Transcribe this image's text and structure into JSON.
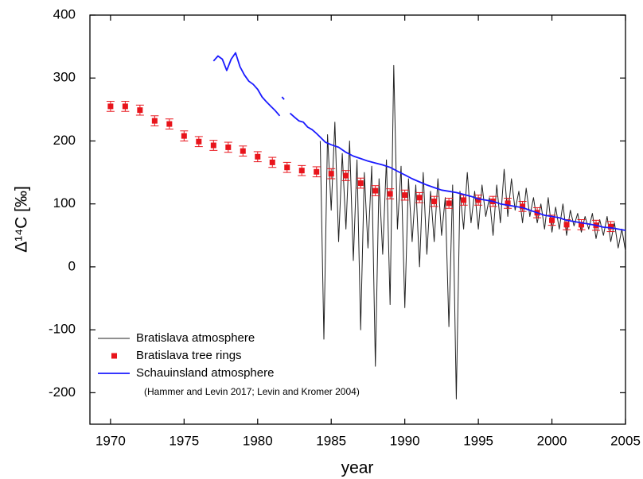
{
  "chart_data": {
    "type": "line",
    "xlabel": "year",
    "ylabel": "Δ¹⁴C [‰]",
    "xlim": [
      1968.6,
      2005
    ],
    "ylim": [
      -250,
      400
    ],
    "xticks": [
      1970,
      1975,
      1980,
      1985,
      1990,
      1995,
      2000,
      2005
    ],
    "yticks": [
      -200,
      -100,
      0,
      100,
      200,
      300,
      400
    ],
    "legend": "lower left",
    "annotation": "(Hammer and Levin 2017; Levin and Kromer 2004)",
    "series": [
      {
        "name": "Bratislava atmosphere",
        "color": "#222222",
        "mark": "line",
        "x": [
          1984.25,
          1984.5,
          1984.75,
          1985,
          1985.25,
          1985.5,
          1985.75,
          1986,
          1986.25,
          1986.5,
          1986.75,
          1987,
          1987.25,
          1987.5,
          1987.75,
          1988,
          1988.25,
          1988.5,
          1988.75,
          1989,
          1989.25,
          1989.5,
          1989.75,
          1990,
          1990.25,
          1990.5,
          1990.75,
          1991,
          1991.25,
          1991.5,
          1991.75,
          1992,
          1992.25,
          1992.5,
          1992.75,
          1993,
          1993.25,
          1993.5,
          1993.75,
          1994,
          1994.25,
          1994.5,
          1994.75,
          1995,
          1995.25,
          1995.5,
          1995.75,
          1996,
          1996.25,
          1996.5,
          1996.75,
          1997,
          1997.25,
          1997.5,
          1997.75,
          1998,
          1998.25,
          1998.5,
          1998.75,
          1999,
          1999.25,
          1999.5,
          1999.75,
          2000,
          2000.25,
          2000.5,
          2000.75,
          2001,
          2001.25,
          2001.5,
          2001.75,
          2002,
          2002.25,
          2002.5,
          2002.75,
          2003,
          2003.25,
          2003.5,
          2003.75,
          2004,
          2004.25,
          2004.5,
          2004.75,
          2005
        ],
        "values": [
          200,
          -115,
          210,
          90,
          230,
          40,
          180,
          60,
          200,
          10,
          170,
          -100,
          150,
          30,
          160,
          -158,
          140,
          20,
          170,
          -60,
          320,
          60,
          160,
          -65,
          140,
          40,
          130,
          0,
          150,
          20,
          120,
          40,
          140,
          50,
          110,
          -95,
          130,
          -210,
          120,
          60,
          150,
          70,
          120,
          60,
          130,
          80,
          110,
          50,
          130,
          70,
          155,
          80,
          140,
          90,
          120,
          70,
          125,
          80,
          110,
          70,
          100,
          60,
          110,
          55,
          95,
          60,
          100,
          50,
          90,
          65,
          85,
          55,
          80,
          60,
          85,
          45,
          75,
          50,
          80,
          40,
          70,
          30,
          60,
          25
        ]
      },
      {
        "name": "Bratislava tree rings",
        "color": "#e8141b",
        "mark": "point",
        "x": [
          1970,
          1971,
          1972,
          1973,
          1974,
          1975,
          1976,
          1977,
          1978,
          1979,
          1980,
          1981,
          1982,
          1983,
          1984,
          1985,
          1986,
          1987,
          1988,
          1989,
          1990,
          1991,
          1992,
          1993,
          1994,
          1995,
          1996,
          1997,
          1998,
          1999,
          2000,
          2001,
          2002,
          2003,
          2004
        ],
        "values": [
          255,
          255,
          249,
          232,
          227,
          208,
          199,
          193,
          190,
          184,
          175,
          166,
          158,
          153,
          151,
          148,
          145,
          133,
          121,
          116,
          114,
          110,
          104,
          101,
          106,
          106,
          104,
          101,
          96,
          86,
          74,
          67,
          67,
          66,
          64
        ],
        "errors": [
          8,
          8,
          8,
          8,
          8,
          8,
          8,
          8,
          8,
          8,
          8,
          8,
          8,
          8,
          8,
          8,
          8,
          8,
          8,
          8,
          8,
          8,
          8,
          8,
          8,
          8,
          8,
          8,
          8,
          8,
          8,
          8,
          8,
          8,
          8
        ]
      },
      {
        "name": "Schauinsland atmosphere",
        "color": "#1a1aff",
        "mark": "line",
        "x": [
          1977,
          1977.3,
          1977.6,
          1977.9,
          1978.2,
          1978.5,
          1978.8,
          1979.1,
          1979.4,
          1979.7,
          1980,
          1980.3,
          1980.6,
          1980.9,
          1981.2,
          1981.5,
          1981.6,
          1981.65,
          1981.8,
          1982,
          1982.2,
          1982.5,
          1982.8,
          1983.1,
          1983.4,
          1983.7,
          1984,
          1984.3,
          1984.6,
          1985,
          1985.5,
          1986,
          1986.5,
          1987,
          1987.5,
          1988,
          1988.5,
          1989,
          1989.5,
          1990,
          1990.5,
          1991,
          1991.5,
          1992,
          1992.5,
          1993,
          1993.5,
          1994,
          1994.5,
          1995,
          1995.5,
          1996,
          1996.5,
          1997,
          1997.5,
          1998,
          1998.5,
          1999,
          1999.5,
          2000,
          2000.5,
          2001,
          2001.5,
          2002,
          2002.5,
          2003,
          2003.5,
          2004,
          2004.5,
          2005
        ],
        "values": [
          327,
          335,
          330,
          312,
          330,
          340,
          318,
          305,
          295,
          290,
          282,
          270,
          262,
          255,
          248,
          240,
          null,
          270,
          266,
          null,
          244,
          238,
          232,
          230,
          222,
          218,
          212,
          205,
          198,
          194,
          190,
          182,
          176,
          172,
          168,
          165,
          162,
          158,
          152,
          146,
          140,
          135,
          130,
          126,
          122,
          120,
          118,
          115,
          112,
          108,
          106,
          104,
          100,
          98,
          96,
          94,
          90,
          86,
          82,
          80,
          78,
          74,
          72,
          70,
          68,
          66,
          63,
          62,
          60,
          58
        ]
      }
    ]
  }
}
